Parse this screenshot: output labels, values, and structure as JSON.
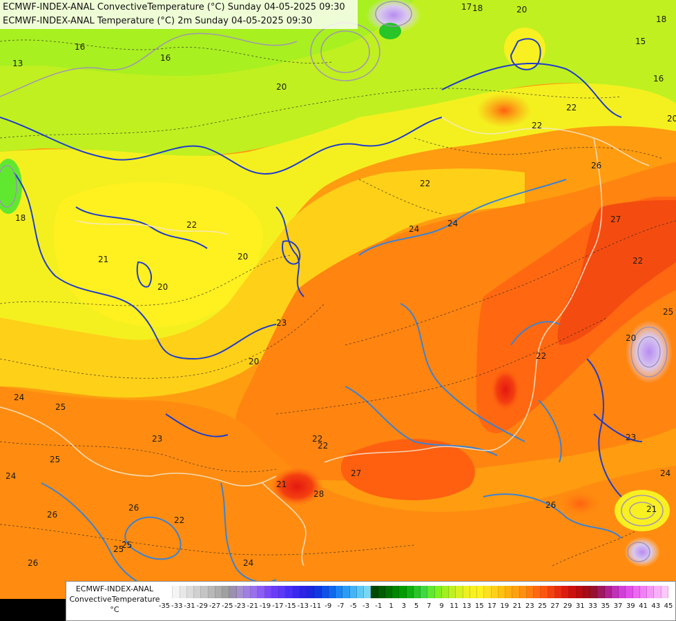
{
  "title": {
    "line1": "ECMWF-INDEX-ANAL ConvectiveTemperature (°C) Sunday 04-05-2025 09:30",
    "line2": "ECMWF-INDEX-ANAL Temperature (°C) 2m Sunday 04-05-2025 09:30"
  },
  "legend": {
    "model": "ECMWF-INDEX-ANAL",
    "parameter": "ConvectiveTemperature",
    "unit": "°C",
    "tick_labels": [
      "-35",
      "-33",
      "-31",
      "-29",
      "-27",
      "-25",
      "-23",
      "-21",
      "-19",
      "-17",
      "-15",
      "-13",
      "-11",
      "-9",
      "-7",
      "-5",
      "-3",
      "-1",
      "1",
      "3",
      "5",
      "7",
      "9",
      "11",
      "13",
      "15",
      "17",
      "19",
      "21",
      "23",
      "25",
      "27",
      "29",
      "31",
      "33",
      "35",
      "37",
      "39",
      "41",
      "43",
      "45"
    ],
    "colors": [
      "#ffffff",
      "#f4f4f4",
      "#e8e8e8",
      "#dcdcdc",
      "#d0d0d0",
      "#c4c4c4",
      "#b8b8b8",
      "#acacac",
      "#a0a0a0",
      "#9a8fb0",
      "#a890d0",
      "#9f7fe0",
      "#9a70ee",
      "#8c5cf4",
      "#7a48f8",
      "#6a3cf8",
      "#5a3af8",
      "#4830f4",
      "#3828f0",
      "#2a24e8",
      "#1c28e0",
      "#1038e0",
      "#0e50e8",
      "#1068ee",
      "#1a84f2",
      "#2a9cf4",
      "#44b4f4",
      "#5ec8f4",
      "#78d8f2",
      "#004800",
      "#005c00",
      "#007000",
      "#008600",
      "#009c00",
      "#10b010",
      "#28c428",
      "#40d840",
      "#60e830",
      "#80f020",
      "#a0f020",
      "#c0f020",
      "#d8f020",
      "#ecf020",
      "#f8f020",
      "#fff020",
      "#ffe020",
      "#ffd018",
      "#ffc010",
      "#ffb010",
      "#ffa010",
      "#ff9010",
      "#ff7c10",
      "#ff6810",
      "#ff5410",
      "#f44010",
      "#e82c10",
      "#dc1c10",
      "#cc1010",
      "#b80c10",
      "#a40c18",
      "#981030",
      "#a01860",
      "#b02090",
      "#c030b8",
      "#d040d8",
      "#e050e8",
      "#ec68f0",
      "#f080f4",
      "#f498f8",
      "#f8b0f8",
      "#fcc8fc"
    ]
  },
  "map_labels": [
    {
      "text": "13"
    },
    {
      "text": "16"
    },
    {
      "text": "16"
    },
    {
      "text": "20"
    },
    {
      "text": "17"
    },
    {
      "text": "18"
    },
    {
      "text": "20"
    },
    {
      "text": "18"
    },
    {
      "text": "15"
    },
    {
      "text": "16"
    },
    {
      "text": "22"
    },
    {
      "text": "22"
    },
    {
      "text": "26"
    },
    {
      "text": "20"
    },
    {
      "text": "18"
    },
    {
      "text": "22"
    },
    {
      "text": "24"
    },
    {
      "text": "24"
    },
    {
      "text": "21"
    },
    {
      "text": "20"
    },
    {
      "text": "20"
    },
    {
      "text": "22"
    },
    {
      "text": "23"
    },
    {
      "text": "20"
    },
    {
      "text": "22"
    },
    {
      "text": "24"
    },
    {
      "text": "25"
    },
    {
      "text": "25"
    },
    {
      "text": "24"
    },
    {
      "text": "23"
    },
    {
      "text": "22"
    },
    {
      "text": "25"
    },
    {
      "text": "22"
    },
    {
      "text": "27"
    },
    {
      "text": "21"
    },
    {
      "text": "28"
    },
    {
      "text": "26"
    },
    {
      "text": "26"
    },
    {
      "text": "25"
    },
    {
      "text": "24"
    },
    {
      "text": "26"
    },
    {
      "text": "22"
    },
    {
      "text": "27"
    },
    {
      "text": "22"
    },
    {
      "text": "25"
    },
    {
      "text": "20"
    },
    {
      "text": "23"
    },
    {
      "text": "24"
    },
    {
      "text": "21"
    },
    {
      "text": "26"
    }
  ]
}
